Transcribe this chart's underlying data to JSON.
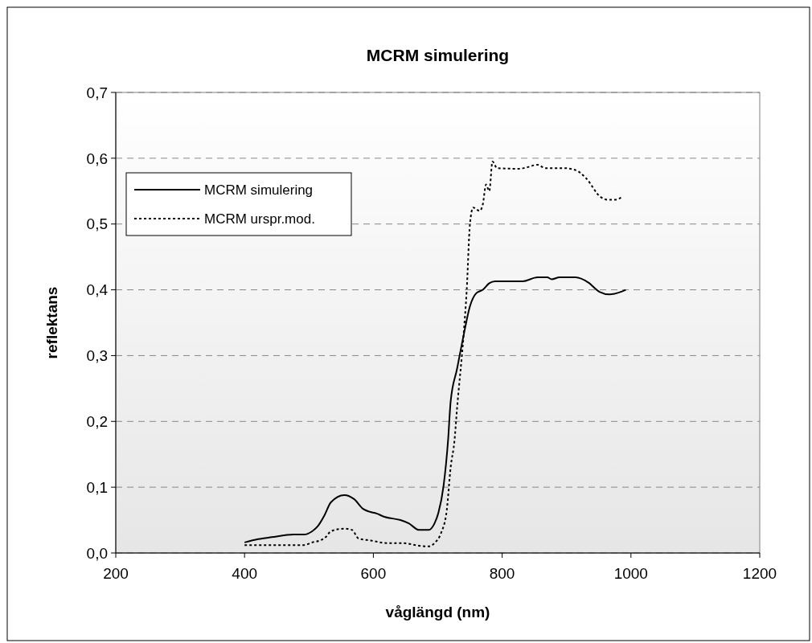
{
  "chart_data": {
    "type": "line",
    "title": "MCRM simulering",
    "xlabel": "våglängd (nm)",
    "ylabel": "reflektans",
    "xlim": [
      200,
      1200
    ],
    "xticks": [
      200,
      400,
      600,
      800,
      1000,
      1200
    ],
    "ylim": [
      0,
      0.7
    ],
    "yticks": [
      {
        "value": 0,
        "label": "0,0"
      },
      {
        "value": 0.1,
        "label": "0,1"
      },
      {
        "value": 0.2,
        "label": "0,2"
      },
      {
        "value": 0.3,
        "label": "0,3"
      },
      {
        "value": 0.4,
        "label": "0,4"
      },
      {
        "value": 0.5,
        "label": "0,5"
      },
      {
        "value": 0.6,
        "label": "0,6"
      },
      {
        "value": 0.7,
        "label": "0,7"
      }
    ],
    "grid": "y",
    "legend": "top left",
    "marker": "none",
    "series": [
      {
        "name": "MCRM simulering",
        "color": "#000000",
        "line_style": "solid",
        "x": [
          400,
          421,
          442,
          476,
          492,
          505,
          514,
          524,
          534,
          555,
          570,
          584,
          593,
          605,
          617,
          642,
          655,
          671,
          686,
          695,
          701,
          709,
          716,
          720,
          730,
          740,
          750,
          760,
          770,
          780,
          789,
          832,
          855,
          870,
          877,
          889,
          914,
          934,
          951,
          967,
          992
        ],
        "values": [
          0.016,
          0.021,
          0.024,
          0.028,
          0.028,
          0.033,
          0.041,
          0.057,
          0.077,
          0.088,
          0.082,
          0.067,
          0.063,
          0.06,
          0.055,
          0.05,
          0.045,
          0.035,
          0.035,
          0.045,
          0.061,
          0.102,
          0.171,
          0.23,
          0.28,
          0.33,
          0.375,
          0.395,
          0.4,
          0.41,
          0.413,
          0.413,
          0.419,
          0.419,
          0.416,
          0.419,
          0.419,
          0.411,
          0.397,
          0.393,
          0.4
        ]
      },
      {
        "name": "MCRM urspr.mod.",
        "color": "#000000",
        "line_style": "dotted",
        "x": [
          400,
          492,
          505,
          517,
          526,
          534,
          555,
          567,
          577,
          596,
          621,
          646,
          671,
          686,
          696,
          705,
          714,
          720,
          726,
          730,
          740,
          745,
          750,
          755,
          765,
          770,
          775,
          780,
          785,
          792,
          826,
          834,
          855,
          867,
          896,
          914,
          930,
          953,
          964,
          976,
          986
        ],
        "values": [
          0.012,
          0.012,
          0.016,
          0.019,
          0.024,
          0.033,
          0.037,
          0.035,
          0.022,
          0.019,
          0.015,
          0.015,
          0.011,
          0.01,
          0.016,
          0.03,
          0.065,
          0.13,
          0.171,
          0.22,
          0.33,
          0.4,
          0.5,
          0.525,
          0.52,
          0.53,
          0.56,
          0.55,
          0.595,
          0.585,
          0.584,
          0.585,
          0.59,
          0.585,
          0.585,
          0.582,
          0.57,
          0.541,
          0.537,
          0.537,
          0.541
        ]
      }
    ]
  }
}
